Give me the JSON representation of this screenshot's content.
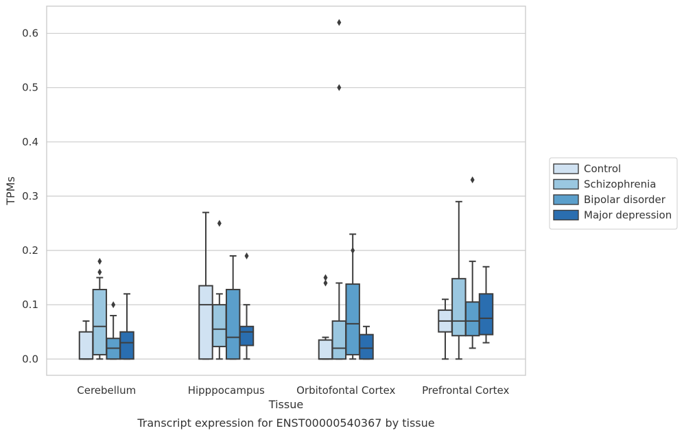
{
  "chart_data": {
    "type": "boxplot",
    "title": "",
    "caption": "Transcript expression for ENST00000540367 by tissue",
    "xlabel": "Tissue",
    "ylabel": "TPMs",
    "ylim": [
      -0.03,
      0.65
    ],
    "yticks": [
      0.0,
      0.1,
      0.2,
      0.3,
      0.4,
      0.5,
      0.6
    ],
    "ytick_labels": [
      "0.0",
      "0.1",
      "0.2",
      "0.3",
      "0.4",
      "0.5",
      "0.6"
    ],
    "grid": "horizontal",
    "legend_position": "right",
    "categories": [
      "Cerebellum",
      "Hipppocampus",
      "Orbitofontal Cortex",
      "Prefrontal Cortex"
    ],
    "series": [
      {
        "name": "Control",
        "color": "#d0e2f2",
        "boxes": [
          {
            "whislo": 0.0,
            "q1": 0.0,
            "med": 0.0,
            "q3": 0.05,
            "whishi": 0.07,
            "fliers": []
          },
          {
            "whislo": 0.0,
            "q1": 0.0,
            "med": 0.1,
            "q3": 0.135,
            "whishi": 0.27,
            "fliers": []
          },
          {
            "whislo": 0.0,
            "q1": 0.0,
            "med": 0.0,
            "q3": 0.035,
            "whishi": 0.04,
            "fliers": [
              0.14,
              0.15
            ]
          },
          {
            "whislo": 0.0,
            "q1": 0.05,
            "med": 0.07,
            "q3": 0.09,
            "whishi": 0.11,
            "fliers": []
          }
        ]
      },
      {
        "name": "Schizophrenia",
        "color": "#9ac7e0",
        "boxes": [
          {
            "whislo": 0.0,
            "q1": 0.008,
            "med": 0.06,
            "q3": 0.128,
            "whishi": 0.15,
            "fliers": [
              0.16,
              0.18
            ]
          },
          {
            "whislo": 0.0,
            "q1": 0.023,
            "med": 0.055,
            "q3": 0.1,
            "whishi": 0.12,
            "fliers": [
              0.25
            ]
          },
          {
            "whislo": 0.0,
            "q1": 0.0,
            "med": 0.02,
            "q3": 0.07,
            "whishi": 0.14,
            "fliers": [
              0.5,
              0.62
            ]
          },
          {
            "whislo": 0.0,
            "q1": 0.043,
            "med": 0.07,
            "q3": 0.148,
            "whishi": 0.29,
            "fliers": []
          }
        ]
      },
      {
        "name": "Bipolar disorder",
        "color": "#5b9fcb",
        "boxes": [
          {
            "whislo": 0.0,
            "q1": 0.0,
            "med": 0.02,
            "q3": 0.038,
            "whishi": 0.08,
            "fliers": [
              0.1
            ]
          },
          {
            "whislo": 0.0,
            "q1": 0.0,
            "med": 0.04,
            "q3": 0.128,
            "whishi": 0.19,
            "fliers": []
          },
          {
            "whislo": 0.0,
            "q1": 0.008,
            "med": 0.065,
            "q3": 0.138,
            "whishi": 0.23,
            "fliers": [
              0.2
            ]
          },
          {
            "whislo": 0.02,
            "q1": 0.043,
            "med": 0.07,
            "q3": 0.105,
            "whishi": 0.18,
            "fliers": [
              0.33
            ]
          }
        ]
      },
      {
        "name": "Major depression",
        "color": "#2a6eb0",
        "boxes": [
          {
            "whislo": 0.0,
            "q1": 0.0,
            "med": 0.03,
            "q3": 0.05,
            "whishi": 0.12,
            "fliers": []
          },
          {
            "whislo": 0.0,
            "q1": 0.025,
            "med": 0.05,
            "q3": 0.06,
            "whishi": 0.1,
            "fliers": [
              0.19
            ]
          },
          {
            "whislo": 0.0,
            "q1": 0.0,
            "med": 0.02,
            "q3": 0.045,
            "whishi": 0.06,
            "fliers": []
          },
          {
            "whislo": 0.03,
            "q1": 0.045,
            "med": 0.075,
            "q3": 0.12,
            "whishi": 0.17,
            "fliers": []
          }
        ]
      }
    ]
  }
}
